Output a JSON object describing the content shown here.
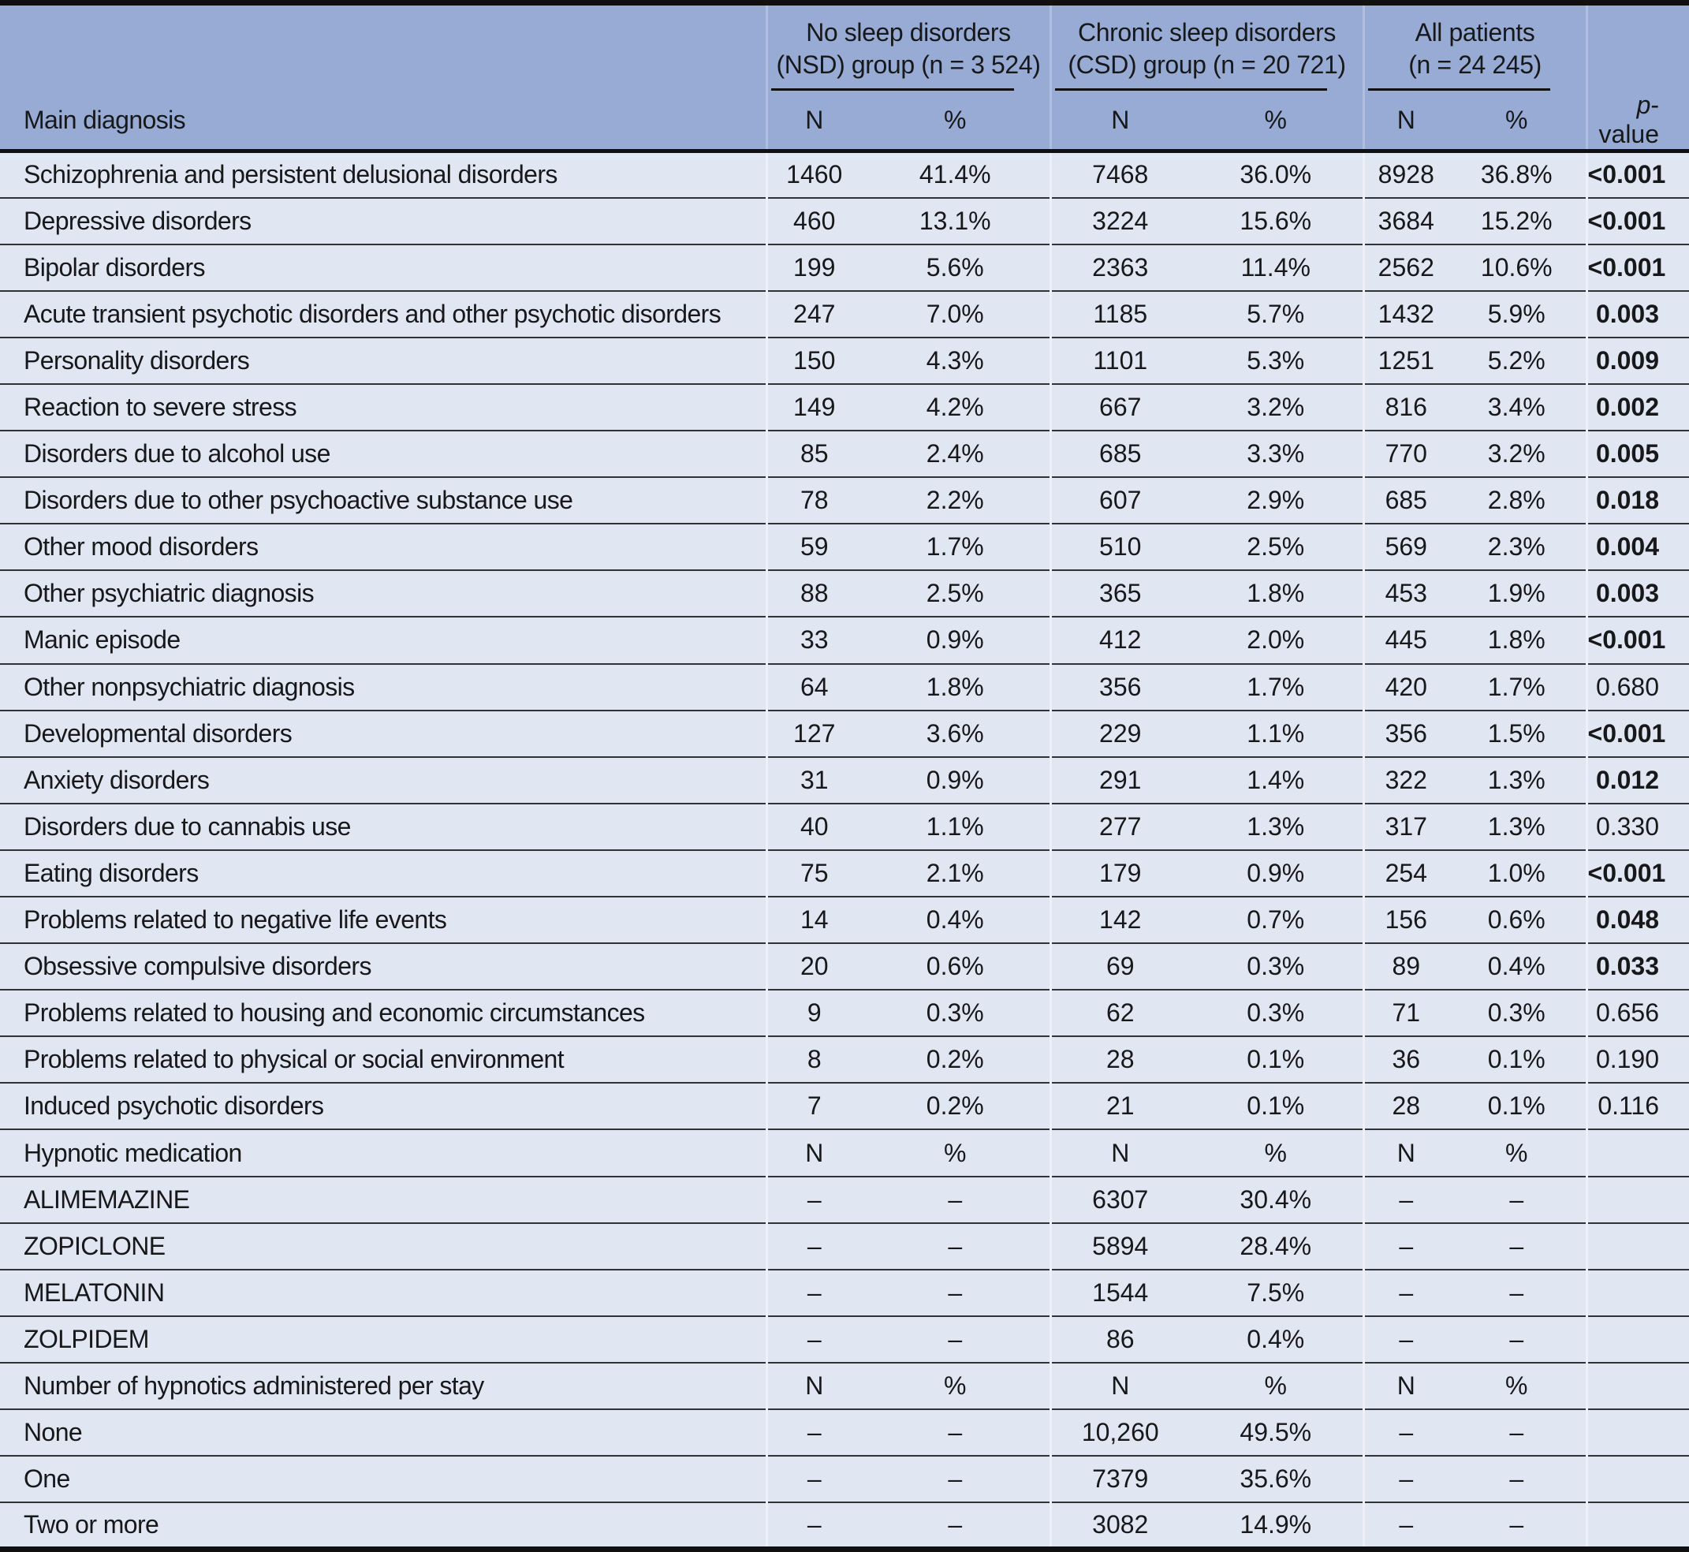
{
  "table": {
    "groups": [
      {
        "line1": "No sleep disorders",
        "line2": "(NSD) group (n = 3 524)"
      },
      {
        "line1": "Chronic sleep disorders",
        "line2": "(CSD) group (n = 20 721)"
      },
      {
        "line1": "All patients",
        "line2": "(n = 24 245)"
      }
    ],
    "main_col_header": "Main diagnosis",
    "sub_headers": [
      "N",
      "%",
      "N",
      "%",
      "N",
      "%"
    ],
    "p_header_italic": "p",
    "p_header_rest": "-value",
    "rows": [
      {
        "label": "Schizophrenia and persistent delusional disorders",
        "cells": [
          "1460",
          "41.4%",
          "7468",
          "36.0%",
          "8928",
          "36.8%"
        ],
        "p": "<0.001",
        "p_bold": true,
        "type": "data"
      },
      {
        "label": "Depressive disorders",
        "cells": [
          "460",
          "13.1%",
          "3224",
          "15.6%",
          "3684",
          "15.2%"
        ],
        "p": "<0.001",
        "p_bold": true,
        "type": "data"
      },
      {
        "label": "Bipolar disorders",
        "cells": [
          "199",
          "5.6%",
          "2363",
          "11.4%",
          "2562",
          "10.6%"
        ],
        "p": "<0.001",
        "p_bold": true,
        "type": "data"
      },
      {
        "label": "Acute transient psychotic disorders and other psychotic disorders",
        "cells": [
          "247",
          "7.0%",
          "1185",
          "5.7%",
          "1432",
          "5.9%"
        ],
        "p": "0.003",
        "p_bold": true,
        "type": "data"
      },
      {
        "label": "Personality disorders",
        "cells": [
          "150",
          "4.3%",
          "1101",
          "5.3%",
          "1251",
          "5.2%"
        ],
        "p": "0.009",
        "p_bold": true,
        "type": "data"
      },
      {
        "label": "Reaction to severe stress",
        "cells": [
          "149",
          "4.2%",
          "667",
          "3.2%",
          "816",
          "3.4%"
        ],
        "p": "0.002",
        "p_bold": true,
        "type": "data"
      },
      {
        "label": "Disorders due to alcohol use",
        "cells": [
          "85",
          "2.4%",
          "685",
          "3.3%",
          "770",
          "3.2%"
        ],
        "p": "0.005",
        "p_bold": true,
        "type": "data"
      },
      {
        "label": "Disorders due to other psychoactive substance use",
        "cells": [
          "78",
          "2.2%",
          "607",
          "2.9%",
          "685",
          "2.8%"
        ],
        "p": "0.018",
        "p_bold": true,
        "type": "data"
      },
      {
        "label": "Other mood disorders",
        "cells": [
          "59",
          "1.7%",
          "510",
          "2.5%",
          "569",
          "2.3%"
        ],
        "p": "0.004",
        "p_bold": true,
        "type": "data"
      },
      {
        "label": "Other psychiatric diagnosis",
        "cells": [
          "88",
          "2.5%",
          "365",
          "1.8%",
          "453",
          "1.9%"
        ],
        "p": "0.003",
        "p_bold": true,
        "type": "data"
      },
      {
        "label": "Manic episode",
        "cells": [
          "33",
          "0.9%",
          "412",
          "2.0%",
          "445",
          "1.8%"
        ],
        "p": "<0.001",
        "p_bold": true,
        "type": "data"
      },
      {
        "label": "Other nonpsychiatric diagnosis",
        "cells": [
          "64",
          "1.8%",
          "356",
          "1.7%",
          "420",
          "1.7%"
        ],
        "p": "0.680",
        "p_bold": false,
        "type": "data"
      },
      {
        "label": "Developmental disorders",
        "cells": [
          "127",
          "3.6%",
          "229",
          "1.1%",
          "356",
          "1.5%"
        ],
        "p": "<0.001",
        "p_bold": true,
        "type": "data"
      },
      {
        "label": "Anxiety disorders",
        "cells": [
          "31",
          "0.9%",
          "291",
          "1.4%",
          "322",
          "1.3%"
        ],
        "p": "0.012",
        "p_bold": true,
        "type": "data"
      },
      {
        "label": "Disorders due to cannabis use",
        "cells": [
          "40",
          "1.1%",
          "277",
          "1.3%",
          "317",
          "1.3%"
        ],
        "p": "0.330",
        "p_bold": false,
        "type": "data"
      },
      {
        "label": "Eating disorders",
        "cells": [
          "75",
          "2.1%",
          "179",
          "0.9%",
          "254",
          "1.0%"
        ],
        "p": "<0.001",
        "p_bold": true,
        "type": "data"
      },
      {
        "label": "Problems related to negative life events",
        "cells": [
          "14",
          "0.4%",
          "142",
          "0.7%",
          "156",
          "0.6%"
        ],
        "p": "0.048",
        "p_bold": true,
        "type": "data"
      },
      {
        "label": "Obsessive compulsive disorders",
        "cells": [
          "20",
          "0.6%",
          "69",
          "0.3%",
          "89",
          "0.4%"
        ],
        "p": "0.033",
        "p_bold": true,
        "type": "data"
      },
      {
        "label": "Problems related to housing and economic circumstances",
        "cells": [
          "9",
          "0.3%",
          "62",
          "0.3%",
          "71",
          "0.3%"
        ],
        "p": "0.656",
        "p_bold": false,
        "type": "data"
      },
      {
        "label": "Problems related to physical or social environment",
        "cells": [
          "8",
          "0.2%",
          "28",
          "0.1%",
          "36",
          "0.1%"
        ],
        "p": "0.190",
        "p_bold": false,
        "type": "data"
      },
      {
        "label": "Induced psychotic disorders",
        "cells": [
          "7",
          "0.2%",
          "21",
          "0.1%",
          "28",
          "0.1%"
        ],
        "p": "0.116",
        "p_bold": false,
        "type": "data"
      },
      {
        "label": "Hypnotic medication",
        "cells": [
          "N",
          "%",
          "N",
          "%",
          "N",
          "%"
        ],
        "p": "",
        "p_bold": false,
        "type": "subheader"
      },
      {
        "label": "ALIMEMAZINE",
        "cells": [
          "–",
          "–",
          "6307",
          "30.4%",
          "–",
          "–"
        ],
        "p": "",
        "p_bold": false,
        "type": "data"
      },
      {
        "label": "ZOPICLONE",
        "cells": [
          "–",
          "–",
          "5894",
          "28.4%",
          "–",
          "–"
        ],
        "p": "",
        "p_bold": false,
        "type": "data"
      },
      {
        "label": "MELATONIN",
        "cells": [
          "–",
          "–",
          "1544",
          "7.5%",
          "–",
          "–"
        ],
        "p": "",
        "p_bold": false,
        "type": "data"
      },
      {
        "label": "ZOLPIDEM",
        "cells": [
          "–",
          "–",
          "86",
          "0.4%",
          "–",
          "–"
        ],
        "p": "",
        "p_bold": false,
        "type": "data"
      },
      {
        "label": "Number of hypnotics administered per stay",
        "cells": [
          "N",
          "%",
          "N",
          "%",
          "N",
          "%"
        ],
        "p": "",
        "p_bold": false,
        "type": "subheader"
      },
      {
        "label": "None",
        "cells": [
          "–",
          "–",
          "10,260",
          "49.5%",
          "–",
          "–"
        ],
        "p": "",
        "p_bold": false,
        "type": "data"
      },
      {
        "label": "One",
        "cells": [
          "–",
          "–",
          "7379",
          "35.6%",
          "–",
          "–"
        ],
        "p": "",
        "p_bold": false,
        "type": "data"
      },
      {
        "label": "Two or more",
        "cells": [
          "–",
          "–",
          "3082",
          "14.9%",
          "–",
          "–"
        ],
        "p": "",
        "p_bold": false,
        "type": "data"
      }
    ]
  },
  "colors": {
    "header_bg": "#98abd5",
    "row_bg": "#e1e6f3",
    "rule": "#2f3237",
    "frame": "#101010",
    "sep_header": "#b0bfe0",
    "sep_body": "#edf0f8",
    "text": "#17181a"
  }
}
